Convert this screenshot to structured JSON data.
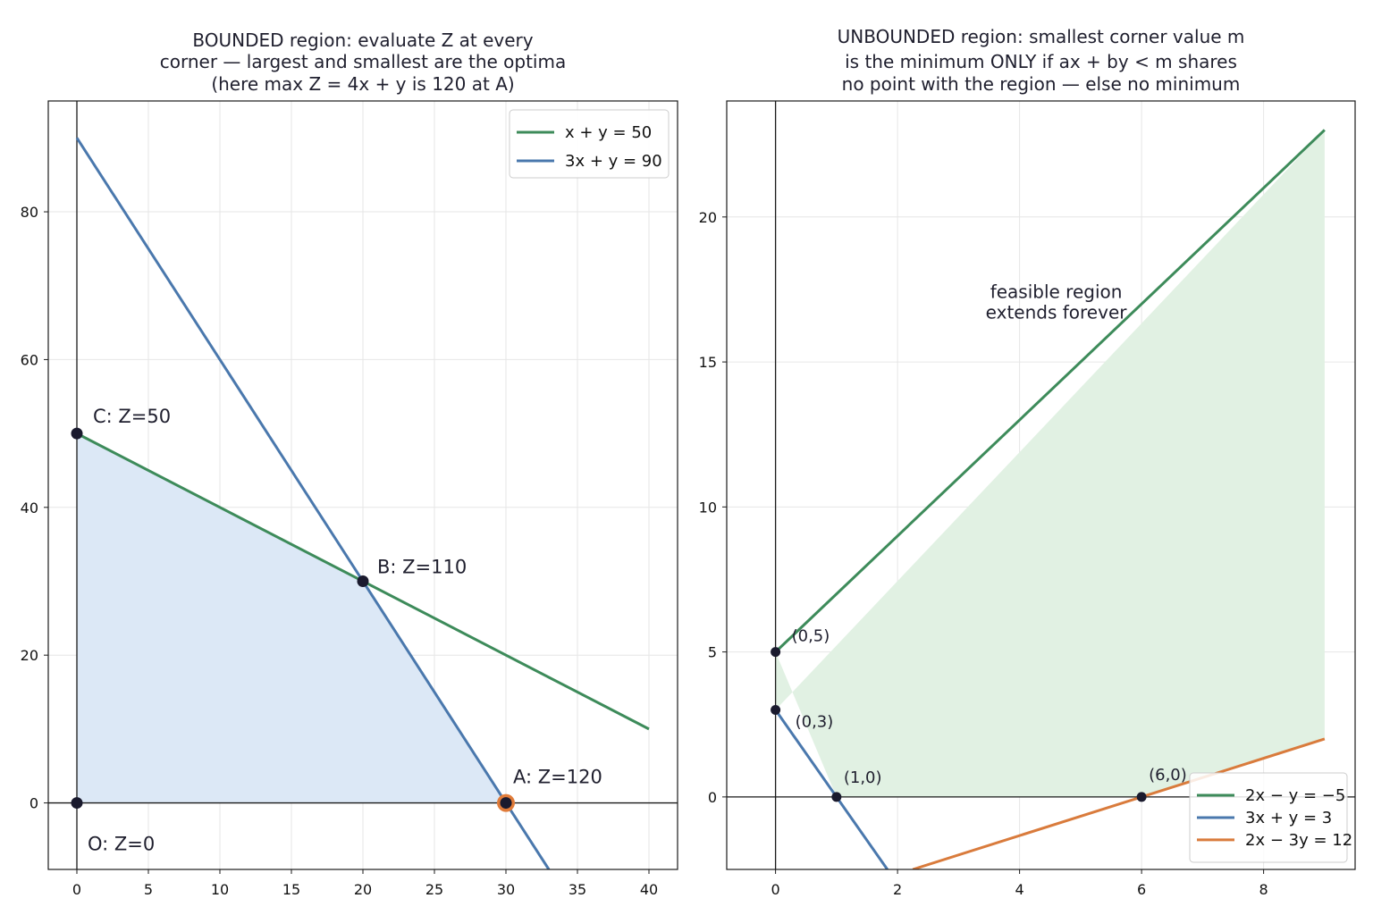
{
  "chart_data": [
    {
      "type": "line",
      "title_lines": [
        "BOUNDED region: evaluate Z at every",
        "corner — largest and smallest are the optima",
        "(here max Z = 4x + y is 120 at A)"
      ],
      "xlim": [
        -2,
        42
      ],
      "ylim": [
        -9,
        95
      ],
      "xticks": [
        0,
        5,
        10,
        15,
        20,
        25,
        30,
        35,
        40
      ],
      "yticks": [
        0,
        20,
        40,
        60,
        80
      ],
      "grid": true,
      "legend_position": "top-right",
      "lines": [
        {
          "name": "x + y = 50",
          "color": "#3d8b5a",
          "x": [
            0,
            40
          ],
          "y": [
            50,
            10
          ]
        },
        {
          "name": "3x + y = 90",
          "color": "#4a78ad",
          "x": [
            0,
            33
          ],
          "y": [
            90,
            -9
          ]
        }
      ],
      "feasible_region": {
        "color": "#dce8f6",
        "x": [
          0,
          0,
          20,
          30
        ],
        "y": [
          0,
          50,
          30,
          0
        ]
      },
      "points": [
        {
          "label": "O: Z=0",
          "x": 0,
          "y": 0
        },
        {
          "label": "C: Z=50",
          "x": 0,
          "y": 50
        },
        {
          "label": "B: Z=110",
          "x": 20,
          "y": 30
        },
        {
          "label": "A: Z=120",
          "x": 30,
          "y": 0,
          "highlight": true,
          "highlight_color": "#e07b39"
        }
      ]
    },
    {
      "type": "line",
      "title_lines": [
        "UNBOUNDED region: smallest corner value m",
        "is the minimum ONLY if ax + by < m shares",
        "no point with the region — else no minimum"
      ],
      "xlim": [
        -0.8,
        9.5
      ],
      "ylim": [
        -2.5,
        24
      ],
      "xticks": [
        0,
        2,
        4,
        6,
        8
      ],
      "yticks": [
        0,
        5,
        10,
        15,
        20
      ],
      "grid": true,
      "legend_position": "bottom-right",
      "annotation": [
        "feasible region",
        "extends forever"
      ],
      "annotation_at": {
        "x": 4.6,
        "y": 17.2
      },
      "lines": [
        {
          "name": "2x − y = −5",
          "color": "#3d8b5a",
          "x": [
            0,
            9
          ],
          "y": [
            5,
            23
          ]
        },
        {
          "name": "3x + y = 3",
          "color": "#4a78ad",
          "x": [
            0,
            1.833
          ],
          "y": [
            3,
            -2.5
          ]
        },
        {
          "name": "2x − 3y = 12",
          "color": "#d97b3c",
          "x": [
            2.25,
            9
          ],
          "y": [
            -2.5,
            2
          ]
        }
      ],
      "feasible_region": {
        "color": "#e1f1e3",
        "x": [
          0,
          0,
          1,
          6,
          9,
          9
        ],
        "y": [
          3,
          5,
          0,
          0,
          2,
          23
        ]
      },
      "points": [
        {
          "label": "(0,5)",
          "x": 0,
          "y": 5
        },
        {
          "label": "(0,3)",
          "x": 0,
          "y": 3
        },
        {
          "label": "(1,0)",
          "x": 1,
          "y": 0
        },
        {
          "label": "(6,0)",
          "x": 6,
          "y": 0
        }
      ]
    }
  ]
}
